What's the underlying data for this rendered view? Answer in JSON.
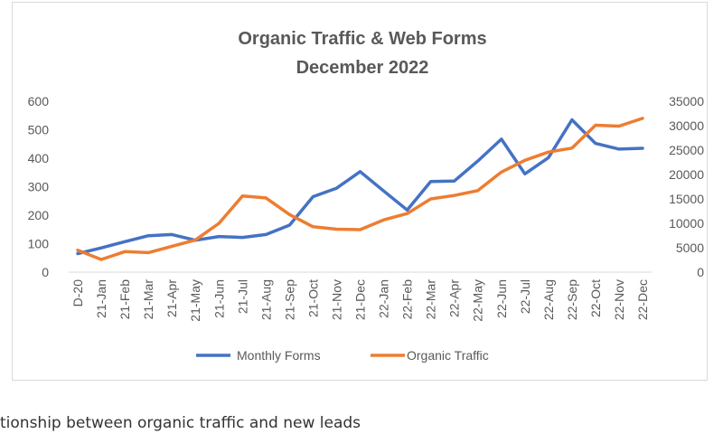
{
  "caption": "tionship between organic traffic and new leads",
  "chart_data": {
    "type": "line",
    "title": "Organic Traffic & Web Forms",
    "subtitle": "December 2022",
    "categories": [
      "D-20",
      "21-Jan",
      "21-Feb",
      "21-Mar",
      "21-Apr",
      "21-May",
      "21-Jun",
      "21-Jul",
      "21-Aug",
      "21-Sep",
      "21-Oct",
      "21-Nov",
      "21-Dec",
      "22-Jan",
      "22-Feb",
      "22-Mar",
      "22-Apr",
      "22-May",
      "22-Jun",
      "22-Jul",
      "22-Aug",
      "22-Sep",
      "22-Oct",
      "22-Nov",
      "22-Dec"
    ],
    "y_left": {
      "min": 0,
      "max": 600,
      "ticks": [
        0,
        100,
        200,
        300,
        400,
        500,
        600
      ]
    },
    "y_right": {
      "min": 0,
      "max": 35000,
      "ticks": [
        0,
        5000,
        10000,
        15000,
        20000,
        25000,
        30000,
        35000
      ]
    },
    "grid": false,
    "legend_position": "bottom",
    "series": [
      {
        "name": "Monthly Forms",
        "axis": "left",
        "color": "#4472c4",
        "values": [
          65,
          85,
          107,
          128,
          132,
          112,
          125,
          122,
          132,
          165,
          265,
          295,
          353,
          285,
          218,
          318,
          320,
          390,
          467,
          345,
          402,
          535,
          452,
          432,
          435
        ]
      },
      {
        "name": "Organic Traffic",
        "axis": "right",
        "color": "#ed7d31",
        "values": [
          4500,
          2600,
          4200,
          4000,
          5300,
          6600,
          10000,
          15600,
          15200,
          11800,
          9300,
          8800,
          8700,
          10700,
          12000,
          15000,
          15700,
          16700,
          20500,
          22900,
          24600,
          25400,
          30100,
          29900,
          31500
        ]
      }
    ]
  }
}
